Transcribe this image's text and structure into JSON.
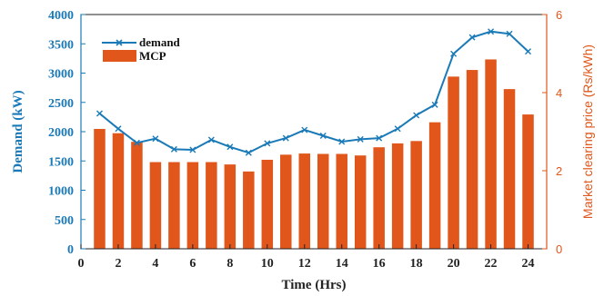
{
  "chart_data": {
    "type": "bar",
    "xlabel": "Time (Hrs)",
    "ylabel": "Demand (kW)",
    "y2label": "Market clearing price (Rs/kWh)",
    "xlim": [
      0,
      25
    ],
    "ylim": [
      0,
      4000
    ],
    "y2lim": [
      0,
      6
    ],
    "xticks": [
      "0",
      "2",
      "4",
      "6",
      "8",
      "10",
      "12",
      "14",
      "16",
      "18",
      "20",
      "22",
      "24"
    ],
    "yticks": [
      "0",
      "500",
      "1000",
      "1500",
      "2000",
      "2500",
      "3000",
      "3500",
      "4000"
    ],
    "y2ticks": [
      "0",
      "2",
      "4",
      "6"
    ],
    "legend_position": "top-left",
    "x": [
      1,
      2,
      3,
      4,
      5,
      6,
      7,
      8,
      9,
      10,
      11,
      12,
      13,
      14,
      15,
      16,
      17,
      18,
      19,
      20,
      21,
      22,
      23,
      24
    ],
    "series": [
      {
        "name": "demand",
        "kind": "line",
        "axis": "left",
        "color": "#1a7ab8",
        "marker": "x",
        "values": [
          2310,
          2050,
          1810,
          1880,
          1700,
          1690,
          1860,
          1740,
          1640,
          1800,
          1890,
          2030,
          1930,
          1830,
          1870,
          1890,
          2050,
          2280,
          2460,
          3330,
          3610,
          3710,
          3670,
          3370
        ]
      },
      {
        "name": "MCP",
        "kind": "bar",
        "axis": "right",
        "color": "#e0561b",
        "values": [
          3.07,
          2.96,
          2.74,
          2.22,
          2.22,
          2.22,
          2.22,
          2.16,
          1.98,
          2.28,
          2.41,
          2.44,
          2.43,
          2.43,
          2.39,
          2.6,
          2.7,
          2.76,
          3.24,
          4.41,
          4.58,
          4.85,
          4.09,
          3.44
        ]
      }
    ]
  }
}
